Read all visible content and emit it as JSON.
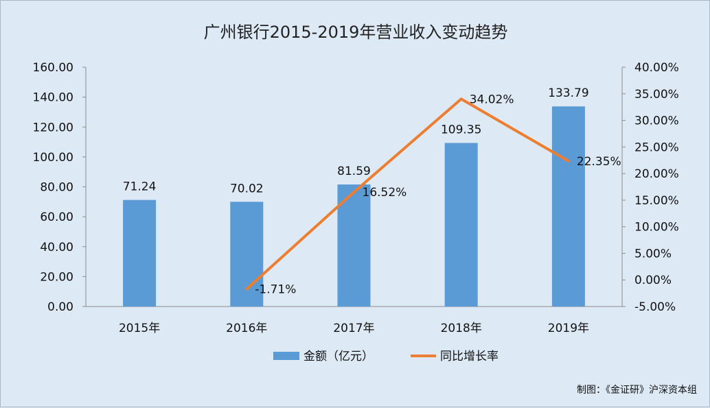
{
  "chart_data": {
    "type": "bar",
    "title": "广州银行2015-2019年营业收入变动趋势",
    "categories": [
      "2015年",
      "2016年",
      "2017年",
      "2018年",
      "2019年"
    ],
    "series": [
      {
        "name": "金额（亿元）",
        "type": "bar",
        "axis": "left",
        "color": "#5b9bd5",
        "values": [
          71.24,
          70.02,
          81.59,
          109.35,
          133.79
        ],
        "labels": [
          "71.24",
          "70.02",
          "81.59",
          "109.35",
          "133.79"
        ]
      },
      {
        "name": "同比增长率",
        "type": "line",
        "axis": "right",
        "color": "#ed7d31",
        "values": [
          null,
          -1.71,
          16.52,
          34.02,
          22.35
        ],
        "labels": [
          "",
          "-1.71%",
          "16.52%",
          "34.02%",
          "22.35%"
        ]
      }
    ],
    "y_left": {
      "lim": [
        0,
        160
      ],
      "ticks": [
        "0.00",
        "20.00",
        "40.00",
        "60.00",
        "80.00",
        "100.00",
        "120.00",
        "140.00",
        "160.00"
      ]
    },
    "y_right": {
      "lim": [
        -5,
        40
      ],
      "ticks": [
        "-5.00%",
        "0.00%",
        "5.00%",
        "10.00%",
        "15.00%",
        "20.00%",
        "25.00%",
        "30.00%",
        "35.00%",
        "40.00%"
      ]
    },
    "grid": false,
    "legend_position": "bottom"
  },
  "credit": "制图：《金证研》沪深资本组",
  "colors": {
    "background": "#dde9f5",
    "bar": "#5b9bd5",
    "line": "#ed7d31"
  }
}
